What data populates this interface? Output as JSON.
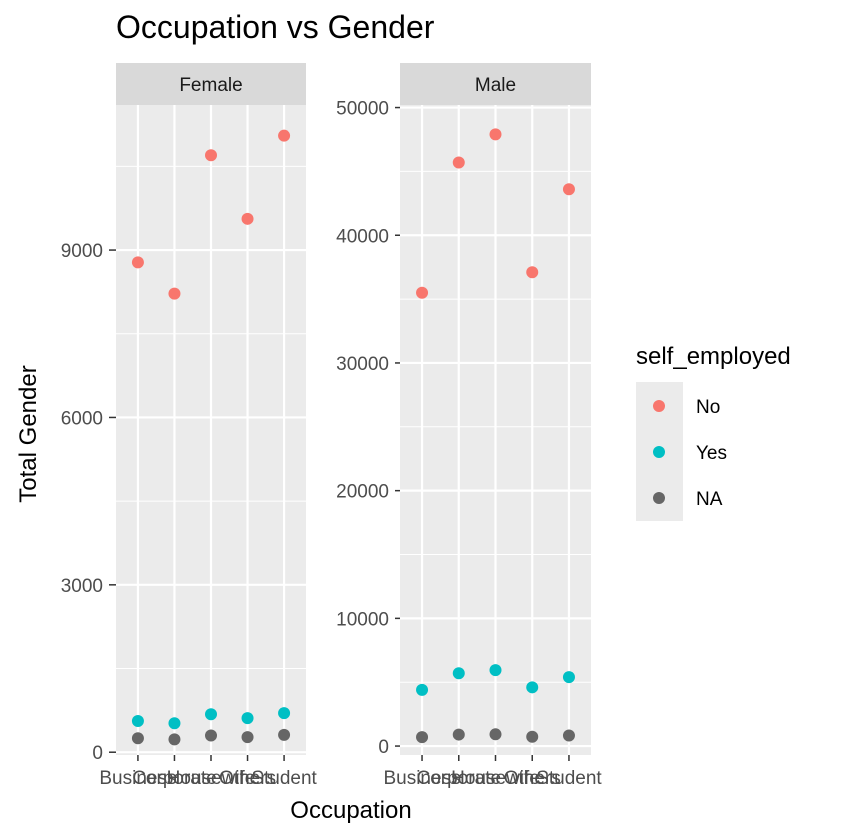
{
  "chart_data": {
    "type": "scatter",
    "title": "Occupation vs Gender",
    "xlabel": "Occupation",
    "ylabel": "Total Gender",
    "categories": [
      "Business",
      "Corporate",
      "Housewife",
      "Others",
      "Student"
    ],
    "grid": true,
    "legend": {
      "title": "self_employed",
      "placement": "right",
      "entries": [
        {
          "label": "No",
          "color": "#F8766D"
        },
        {
          "label": "Yes",
          "color": "#00BFC4"
        },
        {
          "label": "NA",
          "color": "#666666"
        }
      ]
    },
    "facets": [
      {
        "label": "Female",
        "ylim": [
          -50,
          11600
        ],
        "yticks": [
          0,
          3000,
          6000,
          9000
        ],
        "ytick_labels": [
          "0",
          "3000",
          "6000",
          "9000"
        ],
        "series": [
          {
            "name": "No",
            "values": [
              8780,
              8220,
              10700,
              9560,
              11050
            ]
          },
          {
            "name": "Yes",
            "values": [
              560,
              520,
              680,
              610,
              700
            ]
          },
          {
            "name": "NA",
            "values": [
              250,
              230,
              300,
              270,
              310
            ]
          }
        ]
      },
      {
        "label": "Male",
        "ylim": [
          -700,
          50200
        ],
        "yticks": [
          0,
          10000,
          20000,
          30000,
          40000,
          50000
        ],
        "ytick_labels": [
          "0",
          "10000",
          "20000",
          "30000",
          "40000",
          "50000"
        ],
        "series": [
          {
            "name": "No",
            "values": [
              35500,
              45700,
              47900,
              37100,
              43600
            ]
          },
          {
            "name": "Yes",
            "values": [
              4400,
              5700,
              5950,
              4600,
              5400
            ]
          },
          {
            "name": "NA",
            "values": [
              700,
              900,
              920,
              730,
              830
            ]
          }
        ]
      }
    ]
  }
}
